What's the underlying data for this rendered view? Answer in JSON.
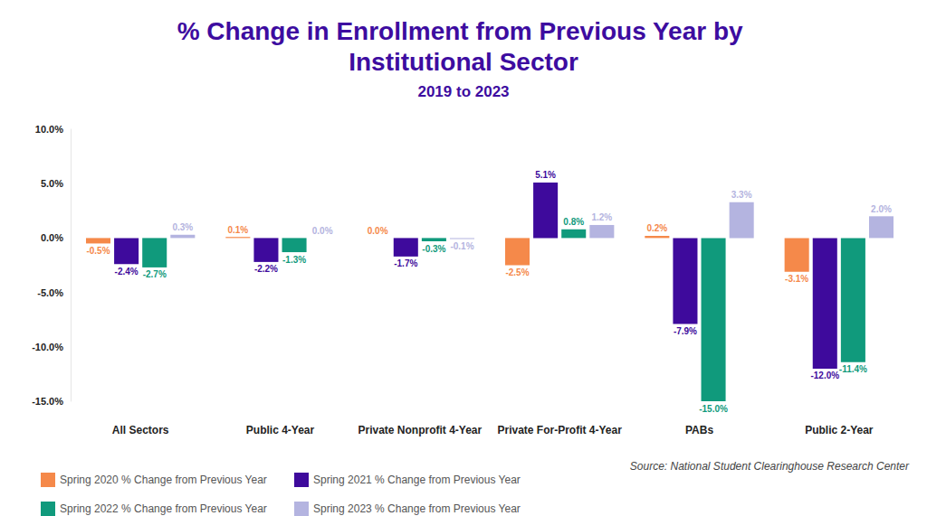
{
  "chart_data": {
    "type": "bar",
    "title": "% Change in Enrollment from Previous Year by Institutional Sector",
    "subtitle": "2019 to 2023",
    "source": "Source: National Student Clearinghouse Research Center",
    "categories": [
      "All Sectors",
      "Public 4-Year",
      "Private Nonprofit 4-Year",
      "Private For-Profit 4-Year",
      "PABs",
      "Public 2-Year"
    ],
    "series": [
      {
        "name": "Spring 2020 % Change from Previous Year",
        "color": "#f5894a",
        "values": [
          -0.5,
          0.1,
          0.0,
          -2.5,
          0.2,
          -3.1
        ],
        "value_labels": [
          "-0.5%",
          "0.1%",
          "0.0%",
          "-2.5%",
          "0.2%",
          "-3.1%"
        ]
      },
      {
        "name": "Spring 2021 % Change from Previous Year",
        "color": "#3e0a9c",
        "values": [
          -2.4,
          -2.2,
          -1.7,
          5.1,
          -7.9,
          -12.0
        ],
        "value_labels": [
          "-2.4%",
          "-2.2%",
          "-1.7%",
          "5.1%",
          "-7.9%",
          "-12.0%"
        ]
      },
      {
        "name": "Spring 2022 % Change from Previous Year",
        "color": "#109a7c",
        "values": [
          -2.7,
          -1.3,
          -0.3,
          0.8,
          -15.0,
          -11.4
        ],
        "value_labels": [
          "-2.7%",
          "-1.3%",
          "-0.3%",
          "0.8%",
          "-15.0%",
          "-11.4%"
        ]
      },
      {
        "name": "Spring 2023 % Change from Previous Year",
        "color": "#b4b4e0",
        "values": [
          0.3,
          0.0,
          -0.1,
          1.2,
          3.3,
          2.0
        ],
        "value_labels": [
          "0.3%",
          "0.0%",
          "-0.1%",
          "1.2%",
          "3.3%",
          "2.0%"
        ]
      }
    ],
    "ylim": [
      -15,
      10
    ],
    "yticks": [
      {
        "value": -15,
        "label": "-15.0%"
      },
      {
        "value": -10,
        "label": "-10.0%"
      },
      {
        "value": -5,
        "label": "-5.0%"
      },
      {
        "value": 0,
        "label": "0.0%"
      },
      {
        "value": 5,
        "label": "5.0%"
      },
      {
        "value": 10,
        "label": "10.0%"
      }
    ],
    "grid": false,
    "legend": "bottom-left",
    "data_labels": true
  }
}
